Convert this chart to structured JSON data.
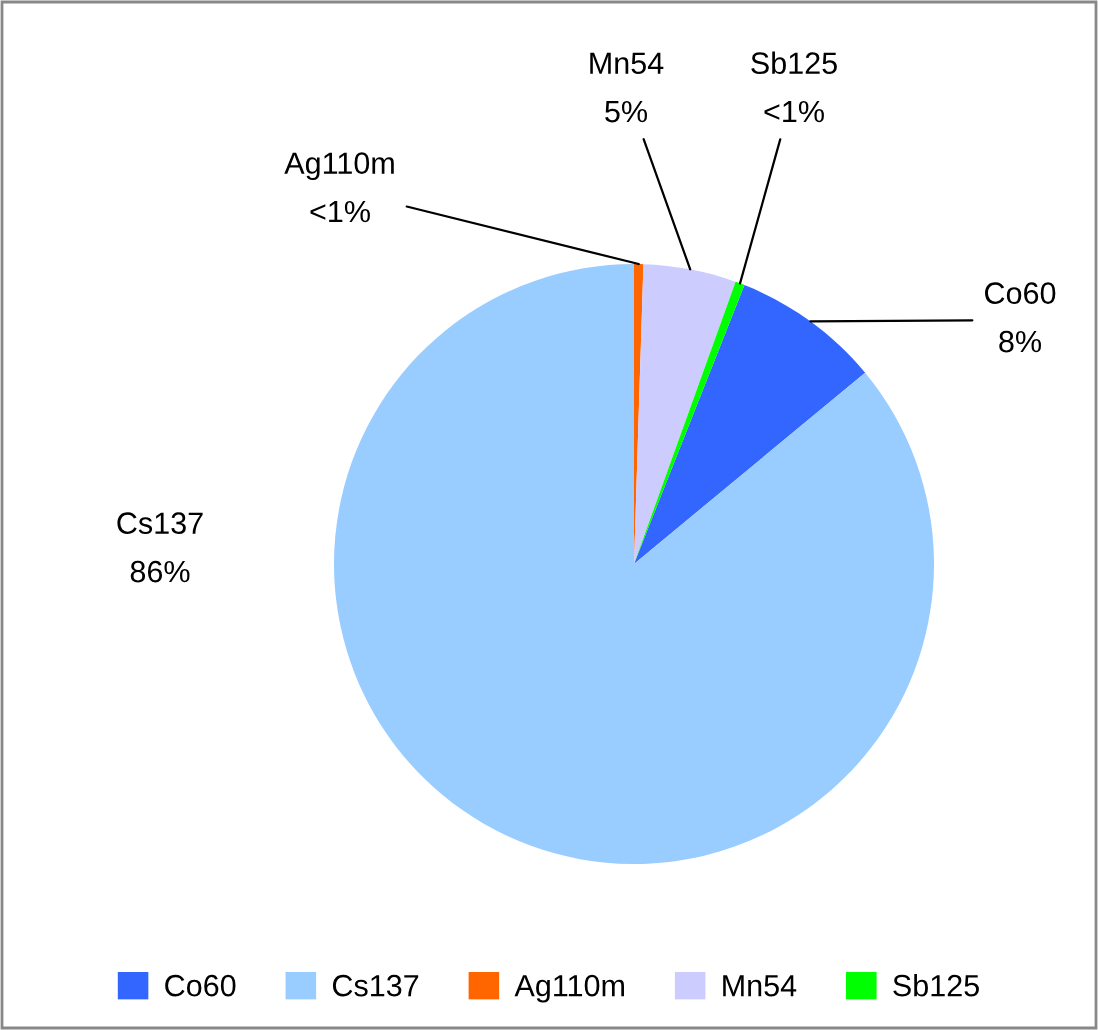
{
  "chart_data": {
    "type": "pie",
    "categories": [
      "Co60",
      "Cs137",
      "Ag110m",
      "Mn54",
      "Sb125"
    ],
    "values": [
      8,
      86,
      0.5,
      5,
      0.5
    ],
    "colors": [
      "#3366ff",
      "#99ccff",
      "#ff6600",
      "#ccccff",
      "#00ff00"
    ],
    "value_labels": [
      "8%",
      "86%",
      "<1%",
      "5%",
      "<1%"
    ],
    "legend": "bottom"
  }
}
